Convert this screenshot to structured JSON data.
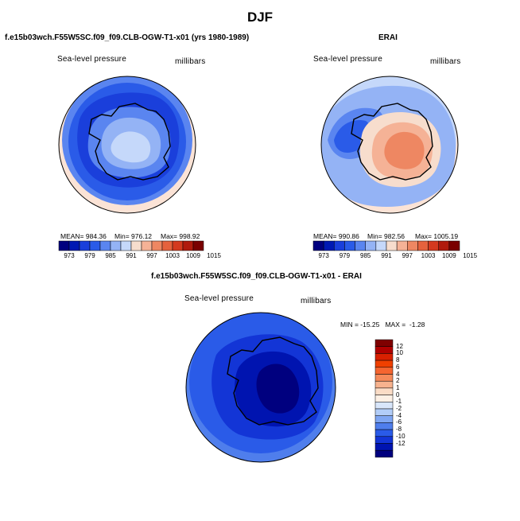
{
  "figure": {
    "title": "DJF"
  },
  "panels": {
    "model": {
      "title": "f.e15b03wch.F55W5SC.f09_f09.CLB-OGW-T1-x01 (yrs 1980-1989)",
      "variable": "Sea-level pressure",
      "units": "millibars",
      "mean": "MEAN= 984.36",
      "min": "Min= 976.12",
      "max": "Max= 998.92"
    },
    "obs": {
      "title": "ERAI",
      "variable": "Sea-level pressure",
      "units": "millibars",
      "mean": "MEAN= 990.86",
      "min": "Min= 982.56",
      "max": "Max= 1005.19"
    },
    "diff": {
      "title": "f.e15b03wch.F55W5SC.f09_f09.CLB-OGW-T1-x01 - ERAI",
      "variable": "Sea-level pressure",
      "units": "millibars",
      "minmax": "MIN = -15.25   MAX =  -1.28"
    }
  },
  "colorbar_abs": {
    "labels": [
      "973",
      "979",
      "985",
      "991",
      "997",
      "1003",
      "1009",
      "1015"
    ],
    "colors": [
      "#00007f",
      "#0019b3",
      "#1a3fdb",
      "#2a5be8",
      "#5a85f0",
      "#94b3f5",
      "#c5d8fa",
      "#f7ddcd",
      "#f5b296",
      "#ee8762",
      "#e5623d",
      "#d43a1f",
      "#b01a0d",
      "#7a0000"
    ]
  },
  "colorbar_diff": {
    "labels": [
      "12",
      "10",
      "8",
      "6",
      "4",
      "2",
      "1",
      "0",
      "-1",
      "-2",
      "-4",
      "-6",
      "-8",
      "-10",
      "-12"
    ],
    "colors": [
      "#7f0000",
      "#b00000",
      "#d82000",
      "#f04000",
      "#f56530",
      "#f58a5a",
      "#f7b28e",
      "#fbdcc6",
      "#fdf0e5",
      "#d8e6fb",
      "#b2cdf8",
      "#7fa6f2",
      "#4f7eec",
      "#2a5be8",
      "#1335d6",
      "#0014b0",
      "#00007f"
    ]
  }
}
